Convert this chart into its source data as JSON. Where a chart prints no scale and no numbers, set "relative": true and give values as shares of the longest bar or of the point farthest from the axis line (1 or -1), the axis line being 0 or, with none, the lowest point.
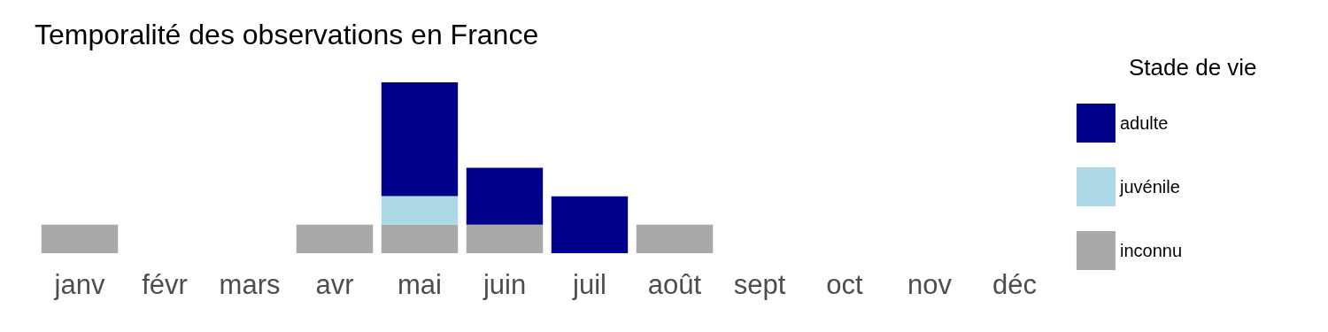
{
  "chart_data": {
    "type": "bar",
    "title": "Temporalité des observations en France",
    "legend_title": "Stade de vie",
    "categories": [
      "janv",
      "févr",
      "mars",
      "avr",
      "mai",
      "juin",
      "juil",
      "août",
      "sept",
      "oct",
      "nov",
      "déc"
    ],
    "stacked": true,
    "relative": true,
    "legend": "right",
    "series": [
      {
        "name": "inconnu",
        "color": "#a9a9a9",
        "values": [
          0.167,
          null,
          null,
          0.167,
          0.167,
          0.167,
          null,
          0.167,
          null,
          null,
          null,
          null
        ]
      },
      {
        "name": "juvénile",
        "color": "#add8e6",
        "values": [
          null,
          null,
          null,
          null,
          0.167,
          null,
          null,
          null,
          null,
          null,
          null,
          null
        ]
      },
      {
        "name": "adulte",
        "color": "#00008b",
        "values": [
          null,
          null,
          null,
          null,
          0.666,
          0.333,
          0.333,
          null,
          null,
          null,
          null,
          null
        ]
      }
    ]
  }
}
